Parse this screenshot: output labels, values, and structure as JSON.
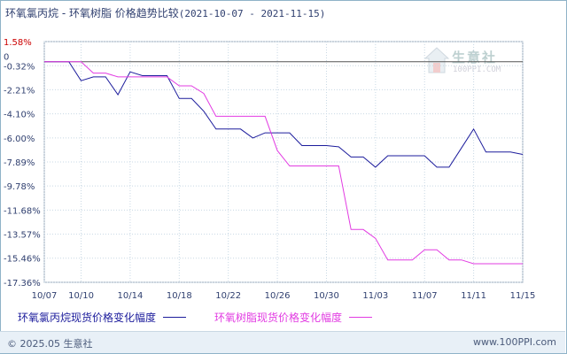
{
  "title": {
    "main": "环氧氯丙烷 - 环氧树脂 价格趋势比较",
    "range": "(2021-10-07 - 2021-11-15)"
  },
  "watermark": {
    "brand": "生意社",
    "url": "100PPI.COM"
  },
  "footer": {
    "copyright": "© 2025.05 生意社",
    "site": "www.100PPI.com"
  },
  "colors": {
    "series1": "#1c1c9c",
    "series2": "#e23ce2",
    "zero_line": "#555555",
    "grid": "#c8d8e4",
    "top_label": "#cc0000"
  },
  "chart_data": {
    "type": "line",
    "ylim": [
      -17.36,
      1.58
    ],
    "y_ticks": [
      "1.58%",
      "-0.32%",
      "-2.21%",
      "-4.10%",
      "-6.00%",
      "-7.89%",
      "-9.78%",
      "-11.68%",
      "-13.57%",
      "-15.46%",
      "-17.36%"
    ],
    "y_tick_values": [
      1.58,
      -0.32,
      -2.21,
      -4.1,
      -6.0,
      -7.89,
      -9.78,
      -11.68,
      -13.57,
      -15.46,
      -17.36
    ],
    "zero_label": "0",
    "x_ticks": [
      "10/07",
      "10/10",
      "10/14",
      "10/18",
      "10/22",
      "10/26",
      "10/30",
      "11/03",
      "11/07",
      "11/11",
      "11/15"
    ],
    "x": [
      "10/07",
      "10/08",
      "10/09",
      "10/10",
      "10/11",
      "10/12",
      "10/13",
      "10/14",
      "10/15",
      "10/16",
      "10/17",
      "10/18",
      "10/19",
      "10/20",
      "10/21",
      "10/22",
      "10/23",
      "10/24",
      "10/25",
      "10/26",
      "10/27",
      "10/28",
      "10/29",
      "10/30",
      "10/31",
      "11/01",
      "11/02",
      "11/03",
      "11/04",
      "11/05",
      "11/06",
      "11/07",
      "11/08",
      "11/09",
      "11/10",
      "11/11",
      "11/12",
      "11/13",
      "11/14",
      "11/15"
    ],
    "series": [
      {
        "name": "环氧氯丙烷现货价格变化幅度",
        "values": [
          0,
          0,
          0,
          -1.5,
          -1.2,
          -1.2,
          -2.6,
          -0.8,
          -1.1,
          -1.1,
          -1.1,
          -2.9,
          -2.9,
          -3.9,
          -5.3,
          -5.3,
          -5.3,
          -6.0,
          -5.6,
          -5.6,
          -5.6,
          -6.6,
          -6.6,
          -6.6,
          -6.7,
          -7.5,
          -7.5,
          -8.3,
          -7.4,
          -7.4,
          -7.4,
          -7.4,
          -8.3,
          -8.3,
          -6.8,
          -5.3,
          -7.1,
          -7.1,
          -7.1,
          -7.3
        ]
      },
      {
        "name": "环氧树脂现货价格变化幅度",
        "values": [
          0,
          0,
          0,
          0,
          -0.9,
          -0.9,
          -1.2,
          -1.2,
          -1.2,
          -1.2,
          -1.2,
          -1.9,
          -1.9,
          -2.5,
          -4.3,
          -4.3,
          -4.3,
          -4.3,
          -4.3,
          -7.0,
          -8.2,
          -8.2,
          -8.2,
          -8.2,
          -8.2,
          -13.2,
          -13.2,
          -13.9,
          -15.6,
          -15.6,
          -15.6,
          -14.8,
          -14.8,
          -15.6,
          -15.6,
          -15.9,
          -15.9,
          -15.9,
          -15.9,
          -15.9
        ]
      }
    ]
  }
}
